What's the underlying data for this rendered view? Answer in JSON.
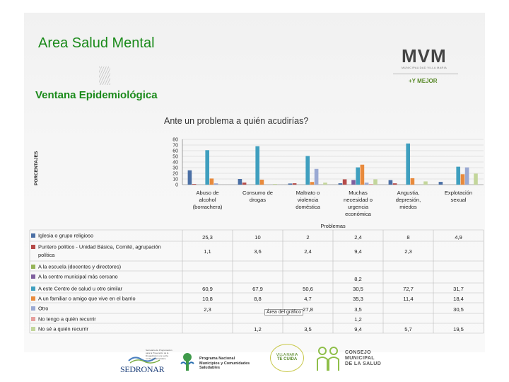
{
  "header": {
    "title": "Area Salud Mental",
    "subtitle": "Ventana Epidemiológica",
    "logo_main": "MVM",
    "logo_sub": "MUNICIPALIDAD VILLA MARIA",
    "logo_tag": "+Y MEJOR"
  },
  "tooltip": "Área del gráfico",
  "colors": {
    "series": [
      "#4a6fa5",
      "#b54a48",
      "#95b458",
      "#7f5f9e",
      "#3f9fbf",
      "#e88a3c",
      "#9aa9d3",
      "#e6a09e",
      "#c3d69b"
    ],
    "title_green": "#1a8a1a"
  },
  "chart_data": {
    "type": "bar",
    "title": "Ante un problema a quién acudirías?",
    "ylabel": "PORCENTAJES",
    "xlabel": "Problemas",
    "ylim": [
      0,
      80
    ],
    "yticks": [
      0,
      10,
      20,
      30,
      40,
      50,
      60,
      70,
      80
    ],
    "grid": true,
    "legend": "table-below",
    "categories": [
      [
        "Abuso de",
        "alcohol",
        "(borrachera)"
      ],
      [
        "Consumo de",
        "drogas"
      ],
      [
        "Maltrato o",
        "violencia",
        "doméstica"
      ],
      [
        "Muchas",
        "necesidad o",
        "urgencia",
        "económica"
      ],
      [
        "Angustia,",
        "depresión,",
        "miedos"
      ],
      [
        "Explotación",
        "sexual"
      ]
    ],
    "series": [
      {
        "name": "Iglesia o grupo religioso",
        "values": [
          25.3,
          10,
          2,
          2.4,
          8,
          4.9
        ],
        "labels": [
          "25,3",
          "10",
          "2",
          "2,4",
          "8",
          "4,9"
        ]
      },
      {
        "name": "Puntero político - Unidad Básica, Comité, agrupación política",
        "values": [
          1.1,
          3.6,
          2.4,
          9.4,
          2.3,
          null
        ],
        "labels": [
          "1,1",
          "3,6",
          "2,4",
          "9,4",
          "2,3",
          ""
        ]
      },
      {
        "name": "A la escuela (docentes y directores)",
        "values": [
          null,
          null,
          null,
          null,
          null,
          null
        ],
        "labels": [
          "",
          "",
          "",
          "",
          "",
          ""
        ]
      },
      {
        "name": "A la centro municipal más cercano",
        "values": [
          null,
          null,
          null,
          8.2,
          null,
          null
        ],
        "labels": [
          "",
          "",
          "",
          "8,2",
          "",
          ""
        ]
      },
      {
        "name": "A este Centro de salud u otro similar",
        "values": [
          60.9,
          67.9,
          50.6,
          30.5,
          72.7,
          31.7
        ],
        "labels": [
          "60,9",
          "67,9",
          "50,6",
          "30,5",
          "72,7",
          "31,7"
        ]
      },
      {
        "name": "A un familiar o amigo que vive en el barrio",
        "values": [
          10.8,
          8.8,
          4.7,
          35.3,
          11.4,
          18.4
        ],
        "labels": [
          "10,8",
          "8,8",
          "4,7",
          "35,3",
          "11,4",
          "18,4"
        ]
      },
      {
        "name": "Otro",
        "values": [
          2.3,
          null,
          27.8,
          3.5,
          null,
          30.5
        ],
        "labels": [
          "2,3",
          "",
          "27,8",
          "3,5",
          "",
          "30,5"
        ]
      },
      {
        "name": "No tengo a quién recurrir",
        "values": [
          null,
          null,
          null,
          1.2,
          null,
          null
        ],
        "labels": [
          "",
          "",
          "",
          "1,2",
          "",
          ""
        ]
      },
      {
        "name": "No sé a quién recurrir",
        "values": [
          null,
          1.2,
          3.5,
          9.4,
          5.7,
          19.5
        ],
        "labels": [
          "",
          "1,2",
          "3,5",
          "9,4",
          "5,7",
          "19,5"
        ]
      }
    ]
  },
  "footer": {
    "sedronar": "SEDRONAR",
    "sedronar_desc": "Secretaría de Programación para la Prevención de la Drogadicción y la Lucha contra el Narcotráfico",
    "programa": [
      "Programa Nacional",
      "Municipios y Comunidades",
      "Saludables"
    ],
    "villa_maria": [
      "VILLA MARIA",
      "TE CUIDA"
    ],
    "consejo": [
      "CONSEJO",
      "MUNICIPAL",
      "DE LA SALUD"
    ]
  }
}
